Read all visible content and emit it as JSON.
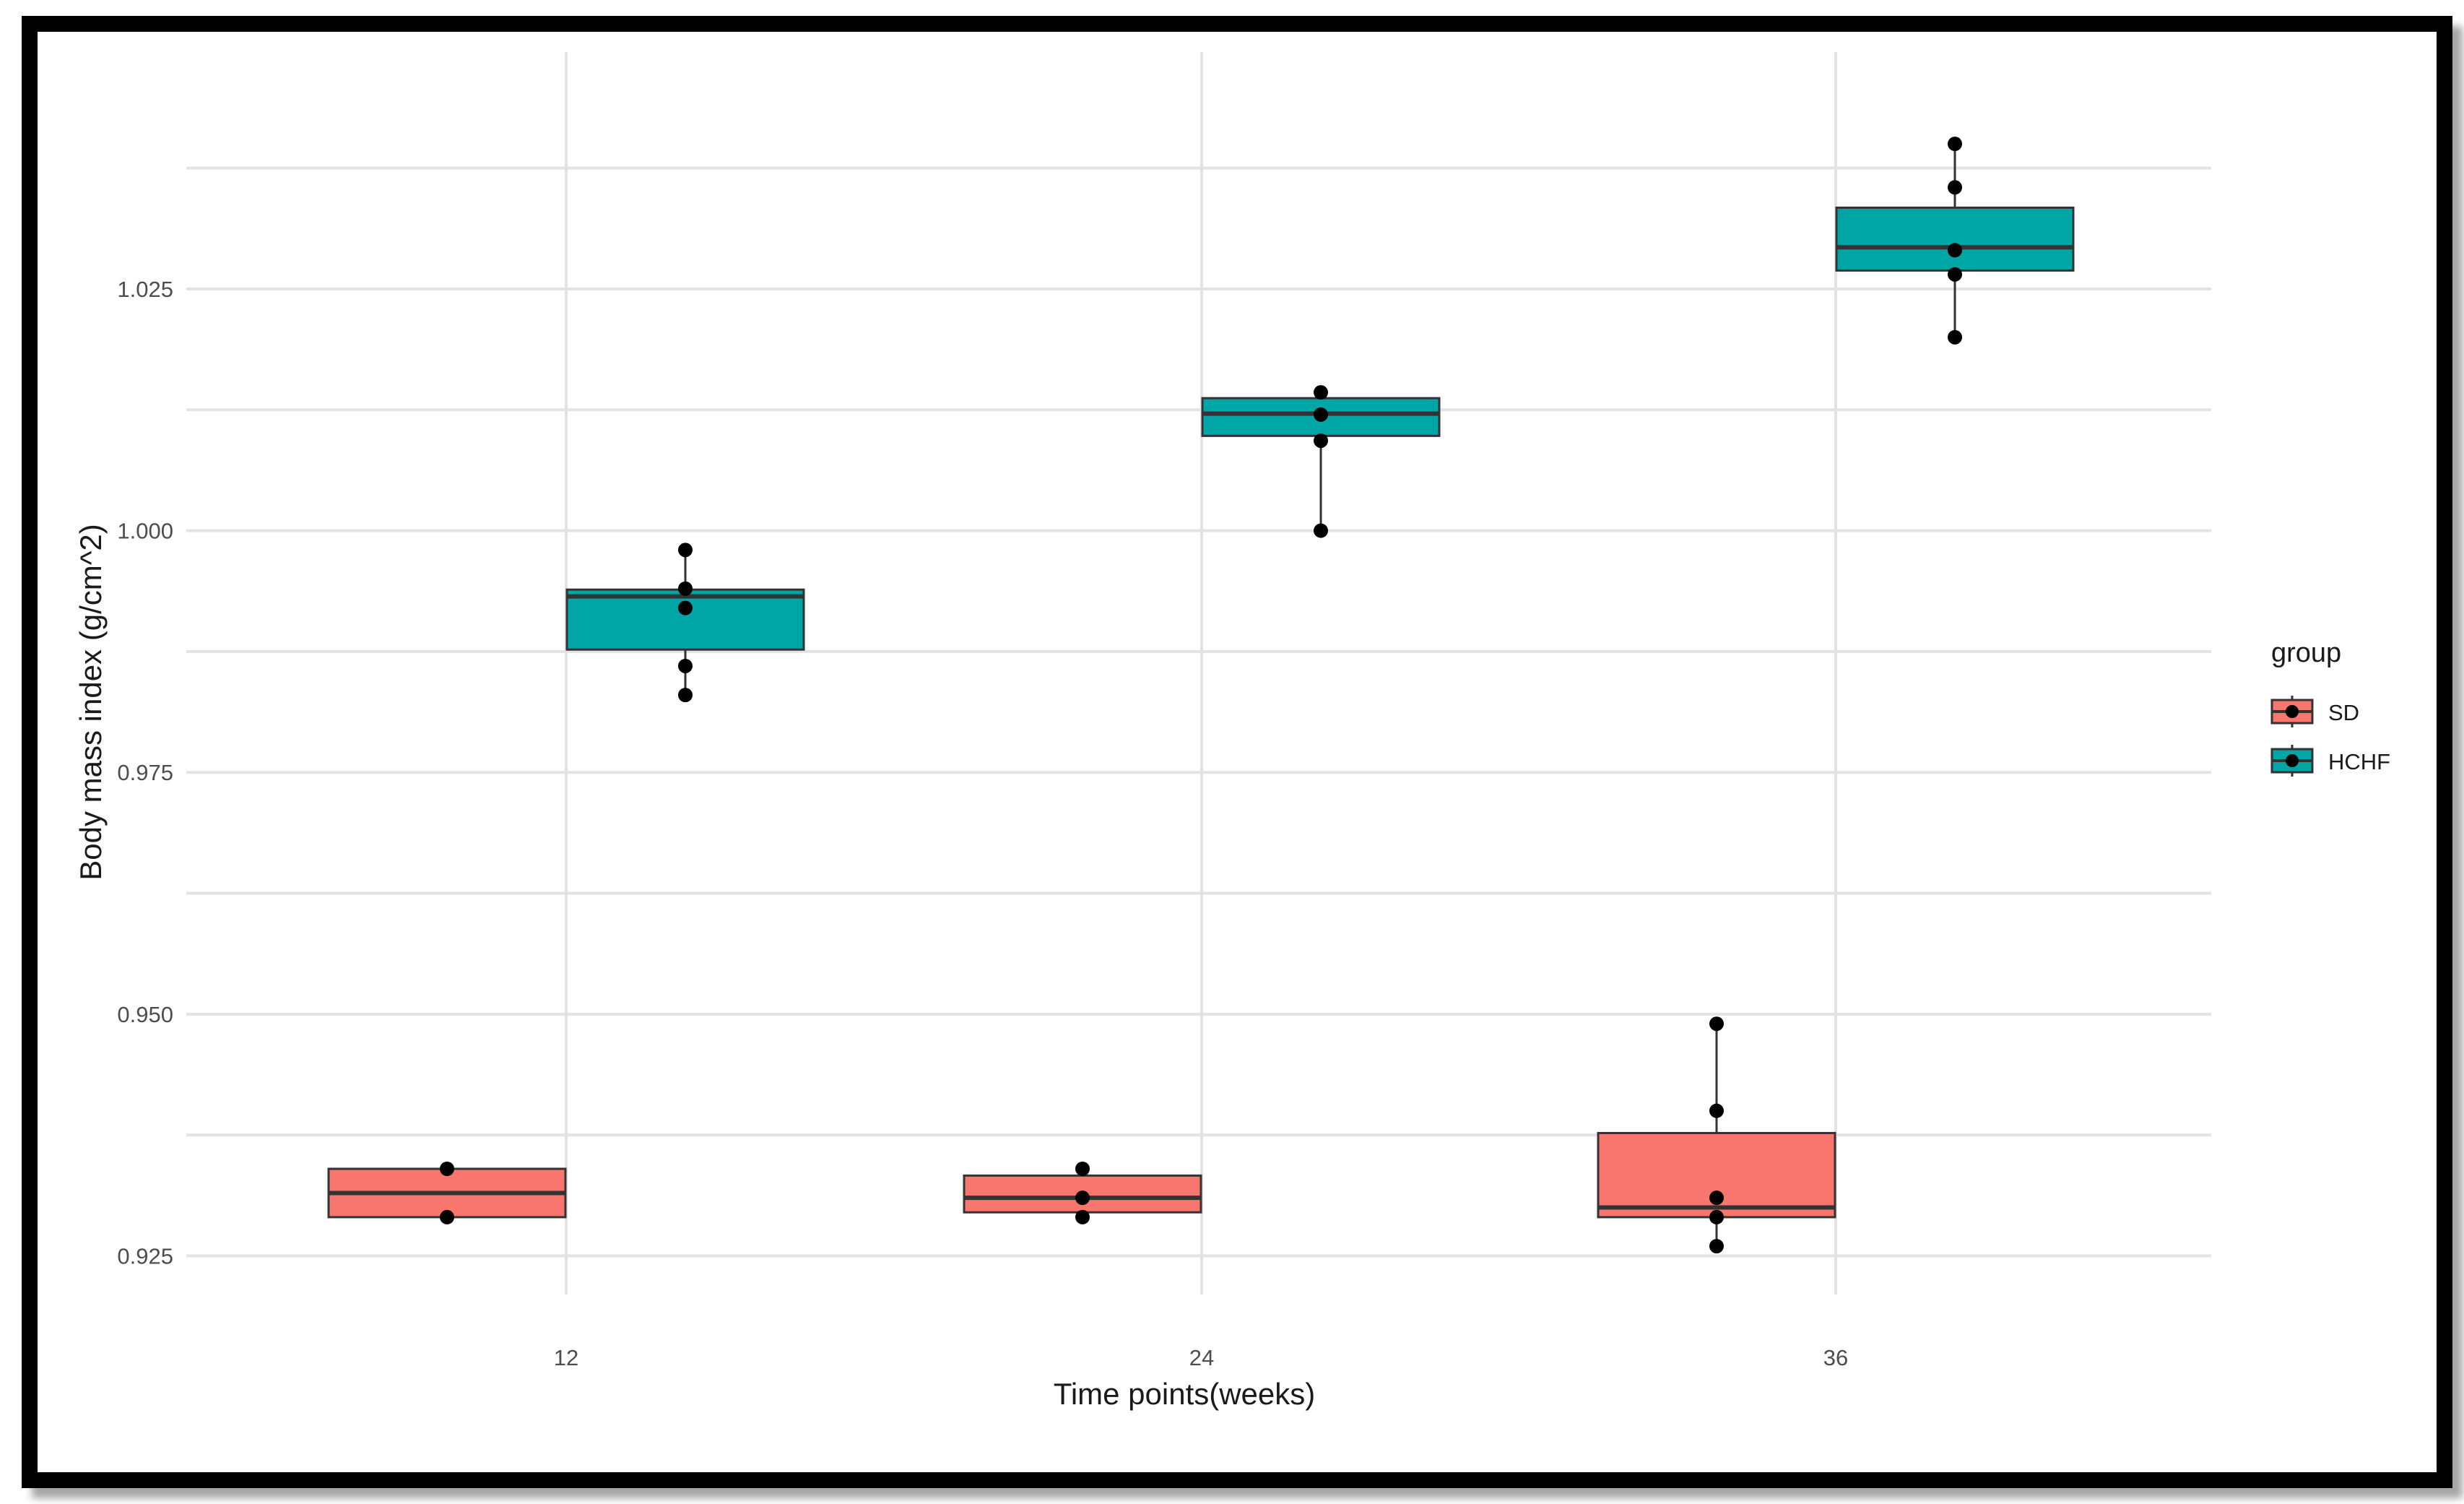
{
  "chart_data": {
    "type": "box",
    "title": "",
    "xlabel": "Time points(weeks)",
    "ylabel": "Body mass index (g/cm^2)",
    "categories": [
      "12",
      "24",
      "36"
    ],
    "ylim": [
      0.921,
      1.0495
    ],
    "y_ticks": [
      0.925,
      0.95,
      0.975,
      1.0,
      1.025
    ],
    "y_tick_labels": [
      "0.925",
      "0.950",
      "0.975",
      "1.000",
      "1.025"
    ],
    "grid": true,
    "legend": {
      "title": "group",
      "position": "right"
    },
    "series": [
      {
        "name": "SD",
        "color": "#F8766D",
        "boxes": [
          {
            "category": "12",
            "q1": 0.929,
            "median": 0.9315,
            "q3": 0.934,
            "whisker_low": 0.929,
            "whisker_high": 0.934,
            "points": [
              0.934,
              0.929
            ]
          },
          {
            "category": "24",
            "q1": 0.9295,
            "median": 0.931,
            "q3": 0.9333,
            "whisker_low": 0.929,
            "whisker_high": 0.934,
            "points": [
              0.934,
              0.931,
              0.929
            ]
          },
          {
            "category": "36",
            "q1": 0.929,
            "median": 0.93,
            "q3": 0.9377,
            "whisker_low": 0.926,
            "whisker_high": 0.949,
            "points": [
              0.949,
              0.94,
              0.931,
              0.929,
              0.926
            ]
          }
        ]
      },
      {
        "name": "HCHF",
        "color": "#00A5A6",
        "boxes": [
          {
            "category": "12",
            "q1": 0.9877,
            "median": 0.9932,
            "q3": 0.9939,
            "whisker_low": 0.983,
            "whisker_high": 0.998,
            "points": [
              0.998,
              0.994,
              0.992,
              0.986,
              0.983
            ]
          },
          {
            "category": "24",
            "q1": 1.0098,
            "median": 1.0121,
            "q3": 1.0137,
            "whisker_low": 1.0,
            "whisker_high": 1.0143,
            "points": [
              1.0143,
              1.012,
              1.0093,
              1.0
            ]
          },
          {
            "category": "36",
            "q1": 1.0269,
            "median": 1.0293,
            "q3": 1.0334,
            "whisker_low": 1.02,
            "whisker_high": 1.04,
            "points": [
              1.04,
              1.0355,
              1.029,
              1.0265,
              1.02
            ]
          }
        ]
      }
    ]
  }
}
